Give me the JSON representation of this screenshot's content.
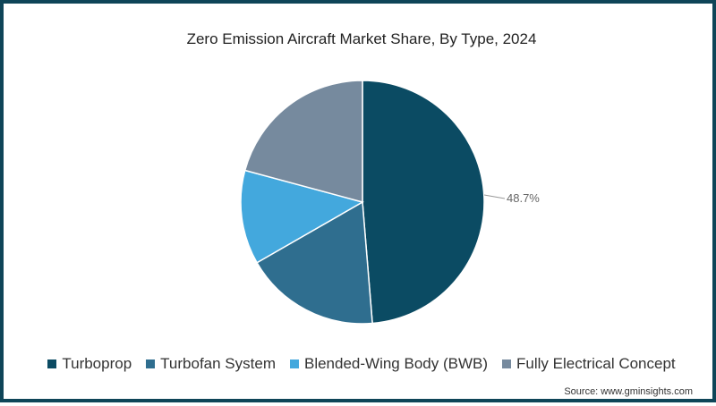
{
  "chart_data": {
    "type": "pie",
    "title": "Zero Emission Aircraft Market Share, By Type, 2024",
    "categories": [
      "Turboprop",
      "Turbofan System",
      "Blended-Wing Body (BWB)",
      "Fully Electrical Concept"
    ],
    "values": [
      48.7,
      18.0,
      12.5,
      20.8
    ],
    "colors": [
      "#0b4b63",
      "#2f6e8f",
      "#43a8dd",
      "#768a9e"
    ],
    "labels": {
      "Turboprop": "48.7%"
    },
    "legend_position": "bottom",
    "source": "Source: www.gminsights.com"
  },
  "title": "Zero Emission Aircraft Market Share, By Type, 2024",
  "data_label": "48.7%",
  "legend": [
    {
      "label": "Turboprop",
      "color": "#0b4b63"
    },
    {
      "label": "Turbofan System",
      "color": "#2f6e8f"
    },
    {
      "label": "Blended-Wing Body (BWB)",
      "color": "#43a8dd"
    },
    {
      "label": "Fully Electrical Concept",
      "color": "#768a9e"
    }
  ],
  "source": "Source: www.gminsights.com"
}
